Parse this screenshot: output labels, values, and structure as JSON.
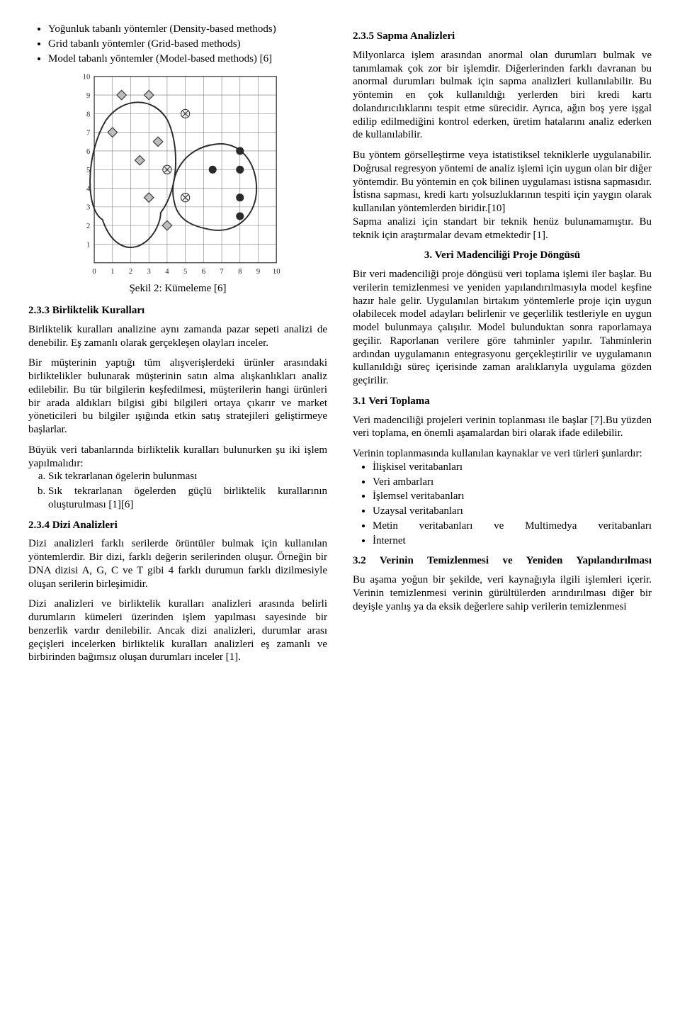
{
  "left": {
    "methods": [
      "Yoğunluk tabanlı yöntemler (Density-based methods)",
      "Grid tabanlı yöntemler (Grid-based methods)",
      "Model tabanlı yöntemler (Model-based methods) [6]"
    ],
    "figure_caption": "Şekil 2: Kümeleme [6]",
    "s233_title": "2.3.3 Birliktelik Kuralları",
    "s233_p1": "Birliktelik kuralları analizine aynı zamanda pazar sepeti analizi de denebilir. Eş zamanlı olarak gerçekleşen olayları inceler.",
    "s233_p2": "Bir müşterinin yaptığı tüm alışverişlerdeki ürünler arasındaki birliktelikler bulunarak müşterinin satın alma alışkanlıkları analiz edilebilir. Bu tür bilgilerin keşfedilmesi, müşterilerin hangi ürünleri bir arada aldıkları bilgisi gibi bilgileri ortaya çıkarır ve market yöneticileri bu bilgiler ışığında etkin satış stratejileri geliştirmeye başlarlar.",
    "s233_p3": "Büyük veri tabanlarında birliktelik kuralları bulunurken şu iki işlem yapılmalıdır:",
    "s233_list_a": "Sık tekrarlanan ögelerin bulunması",
    "s233_list_b": "Sık tekrarlanan ögelerden güçlü birliktelik kurallarının oluşturulması [1][6]",
    "s234_title": "2.3.4 Dizi Analizleri",
    "s234_p1": "Dizi analizleri farklı serilerde örüntüler bulmak için kullanılan yöntemlerdir. Bir dizi, farklı değerin serilerinden oluşur. Örneğin bir DNA dizisi A, G, C ve T gibi 4 farklı durumun farklı dizilmesiyle oluşan serilerin birleşimidir.",
    "s234_p2": "Dizi analizleri ve birliktelik kuralları analizleri arasında belirli durumların kümeleri üzerinden işlem yapılması sayesinde bir benzerlik vardır denilebilir. Ancak dizi analizleri, durumlar arası geçişleri incelerken birliktelik kuralları analizleri eş zamanlı ve birbirinden bağımsız oluşan durumları inceler [1]."
  },
  "right": {
    "s235_title": "2.3.5 Sapma Analizleri",
    "s235_p1": "Milyonlarca işlem arasından anormal olan durumları bulmak ve tanımlamak çok zor bir işlemdir. Diğerlerinden farklı davranan bu anormal durumları bulmak için sapma analizleri kullanılabilir. Bu yöntemin en çok kullanıldığı yerlerden biri kredi kartı dolandırıcılıklarını tespit etme sürecidir. Ayrıca, ağın boş yere işgal edilip edilmediğini kontrol ederken, üretim hatalarını analiz ederken de kullanılabilir.",
    "s235_p2": "Bu yöntem görselleştirme veya istatistiksel tekniklerle uygulanabilir. Doğrusal regresyon yöntemi de analiz işlemi için uygun olan bir diğer yöntemdir. Bu yöntemin en çok bilinen uygulaması istisna sapmasıdır. İstisna sapması, kredi kartı yolsuzluklarının tespiti için yaygın olarak kullanılan yöntemlerden biridir.[10]",
    "s235_p3": "Sapma analizi için standart bir teknik henüz bulunamamıştır. Bu teknik için araştırmalar devam etmektedir [1].",
    "s3_title": "3. Veri Madenciliği Proje Döngüsü",
    "s3_p1": "Bir veri madenciliği proje döngüsü veri toplama işlemi iler başlar. Bu verilerin temizlenmesi ve yeniden yapılandırılmasıyla model keşfine hazır hale gelir. Uygulanılan birtakım yöntemlerle proje için uygun olabilecek model adayları belirlenir ve geçerlilik testleriyle en uygun model bulunmaya çalışılır. Model bulunduktan sonra raporlamaya geçilir. Raporlanan verilere göre tahminler yapılır. Tahminlerin ardından uygulamanın entegrasyonu gerçekleştirilir ve uygulamanın kullanıldığı süreç içerisinde zaman aralıklarıyla uygulama gözden geçirilir.",
    "s31_title": "3.1 Veri Toplama",
    "s31_p1": "Veri madenciliği projeleri verinin toplanması ile başlar [7].Bu yüzden veri toplama, en önemli aşamalardan biri olarak ifade edilebilir.",
    "s31_p2": "Verinin toplanmasında kullanılan kaynaklar ve veri türleri şunlardır:",
    "s31_list": [
      "İlişkisel veritabanları",
      "Veri ambarları",
      "İşlemsel veritabanları",
      "Uzaysal veritabanları",
      "Metin veritabanları ve Multimedya veritabanları",
      "İnternet"
    ],
    "s32_title": "3.2 Verinin Temizlenmesi ve Yeniden Yapılandırılması",
    "s32_p1": "Bu aşama yoğun bir şekilde, veri kaynağıyla ilgili işlemleri içerir. Verinin temizlenmesi verinin gürültülerden arındırılması diğer bir deyişle yanlış ya da eksik değerlere sahip verilerin temizlenmesi"
  },
  "chart": {
    "type": "scatter-cluster-diagram",
    "xlim": [
      0,
      10
    ],
    "ylim": [
      0,
      10
    ],
    "xticks": [
      0,
      1,
      2,
      3,
      4,
      5,
      6,
      7,
      8,
      9,
      10
    ],
    "yticks": [
      1,
      2,
      3,
      4,
      5,
      6,
      7,
      8,
      9,
      10
    ],
    "background_color": "#ffffff",
    "grid_color": "#7a7a7a",
    "axis_color": "#2a2a2a",
    "marker_size": 7,
    "markers": {
      "diamond_fill": "#bdbdbd",
      "diamond_stroke": "#3a3a3a",
      "circle_fill": "#2a2a2a",
      "circle_stroke": "#2a2a2a",
      "cross_stroke": "#3a3a3a"
    },
    "cluster_outline_stroke": "#2a2a2a",
    "cluster_outline_width": 2,
    "points_diamond": [
      [
        1,
        7
      ],
      [
        1.5,
        9
      ],
      [
        3,
        9
      ],
      [
        2.5,
        5.5
      ],
      [
        3,
        3.5
      ],
      [
        4,
        2
      ],
      [
        3.5,
        6.5
      ]
    ],
    "points_circle": [
      [
        6.5,
        5
      ],
      [
        8,
        6
      ],
      [
        8,
        5
      ],
      [
        8,
        3.5
      ],
      [
        8,
        2.5
      ]
    ],
    "points_cross": [
      [
        4,
        5
      ],
      [
        5,
        3.5
      ],
      [
        5,
        8
      ]
    ],
    "cluster_paths": [
      "M 40 215 C 15 200, 15 120, 45 70 C 70 35, 115 35, 135 70 C 150 100, 155 165, 125 205 C 125 225, 105 260, 75 255 C 55 250, 45 230, 40 215 Z",
      "M 145 190 C 135 150, 160 110, 205 105 C 240 100, 265 130, 265 170 C 265 210, 235 235, 200 230 C 170 225, 150 215, 145 190 Z"
    ]
  }
}
